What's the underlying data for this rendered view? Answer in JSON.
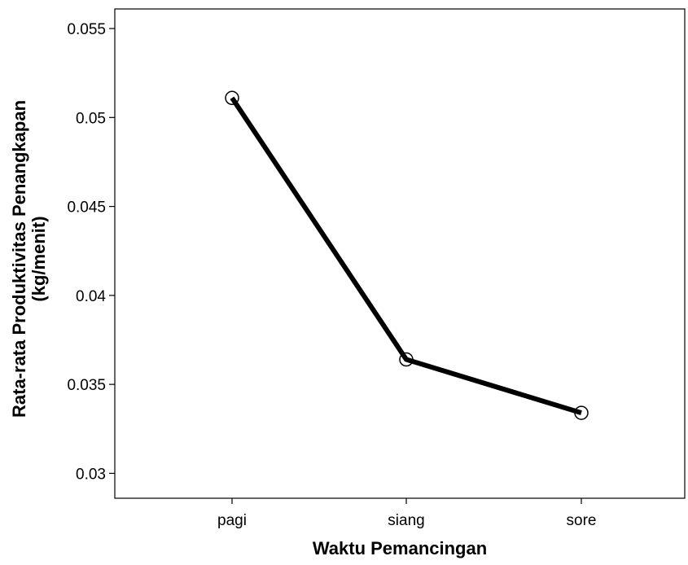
{
  "colors": {
    "line": "#000000",
    "marker_fill": "#ffffff",
    "axis": "#000000",
    "background": "#ffffff"
  },
  "chart_data": {
    "type": "line",
    "categories": [
      "pagi",
      "siang",
      "sore"
    ],
    "series": [
      {
        "values": [
          0.0511,
          0.0364,
          0.0334
        ],
        "marker": "open-circle"
      }
    ],
    "title": "",
    "xlabel": "Waktu Pemancingan",
    "ylabel_lines": [
      "Rata-rata Produktivitas Penangkapan",
      "(kg/menit)"
    ],
    "ylim": [
      0.0286,
      0.0561
    ],
    "yticks": [
      0.03,
      0.035,
      0.04,
      0.045,
      0.05,
      0.055
    ],
    "ytick_labels": [
      "0.03",
      "0.035",
      "0.04",
      "0.045",
      "0.05",
      "0.055"
    ],
    "grid": false,
    "legend": "none"
  }
}
